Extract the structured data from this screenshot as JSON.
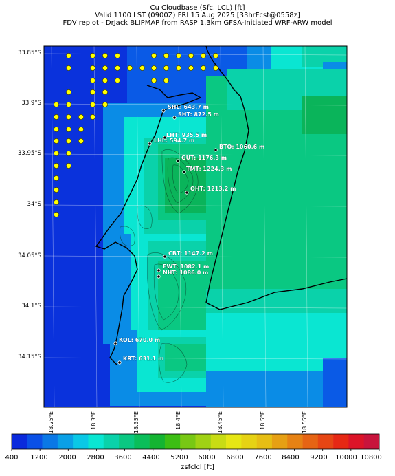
{
  "titles": {
    "line1": "Cu Cloudbase (Sfc. LCL) [ft]",
    "line2": "Valid 1100 LST (0900Z) FRI 15 Aug 2025 [33hrFcst@0558z]",
    "line3": "FDV replot - DrJack BLIPMAP from RASP 1.3km GFSA-Initiated WRF-ARW model"
  },
  "lat_labels": [
    "33.85°S",
    "33.9°S",
    "33.95°S",
    "34°S",
    "34.05°S",
    "34.1°S",
    "34.15°S"
  ],
  "lon_labels": [
    "18.25°E",
    "18.3°E",
    "18.35°E",
    "18.4°E",
    "18.45°E",
    "18.5°E",
    "18.55°E"
  ],
  "stations": [
    {
      "name": "SHL",
      "text": "SHL: 643.7 m"
    },
    {
      "name": "SHT",
      "text": "SHT: 872.5 m"
    },
    {
      "name": "LHT",
      "text": "LHT: 935.5 m"
    },
    {
      "name": "LHL",
      "text": "LHL: 594.7 m"
    },
    {
      "name": "BTO",
      "text": "BTO: 1060.6 m"
    },
    {
      "name": "GUT",
      "text": "GUT: 1176.3 m"
    },
    {
      "name": "TMT",
      "text": "TMT: 1224.3 m"
    },
    {
      "name": "OHT",
      "text": "OHT: 1213.2 m"
    },
    {
      "name": "CBT",
      "text": "CBT: 1147.2 m"
    },
    {
      "name": "FWT",
      "text": "FWT: 1082.1 m"
    },
    {
      "name": "NHT",
      "text": "NHT: 1086.0 m"
    },
    {
      "name": "KOL",
      "text": "KOL: 670.0 m"
    },
    {
      "name": "KRT",
      "text": "KRT: 631.1 m"
    }
  ],
  "colorbar": {
    "label": "zsfclcl [ft]",
    "ticks": [
      "400",
      "1200",
      "2000",
      "2800",
      "3600",
      "4400",
      "5200",
      "6000",
      "6800",
      "7600",
      "8400",
      "9200",
      "10000",
      "10800"
    ],
    "colors": [
      "#0a2adc",
      "#0a50e6",
      "#0a78e6",
      "#0aa0e6",
      "#0ac8e6",
      "#0ae6d2",
      "#0ad2aa",
      "#0ac882",
      "#0abe5a",
      "#14b432",
      "#3cbe14",
      "#78c814",
      "#a0d214",
      "#c8dc14",
      "#e6e614",
      "#e6d214",
      "#e6be14",
      "#e6a014",
      "#e68214",
      "#e66414",
      "#e64614",
      "#e62814",
      "#dc1428",
      "#c8143c"
    ]
  },
  "map_colors": {
    "ocean_deep": "#0a32dc",
    "ocean_mid": "#0a5ae6",
    "ocean_light": "#0a8ce6",
    "cyan": "#0ae6d2",
    "teal": "#0ad2aa",
    "green": "#0ac882",
    "dark_green": "#0ab45a",
    "missing_marker": "#ffff00"
  }
}
